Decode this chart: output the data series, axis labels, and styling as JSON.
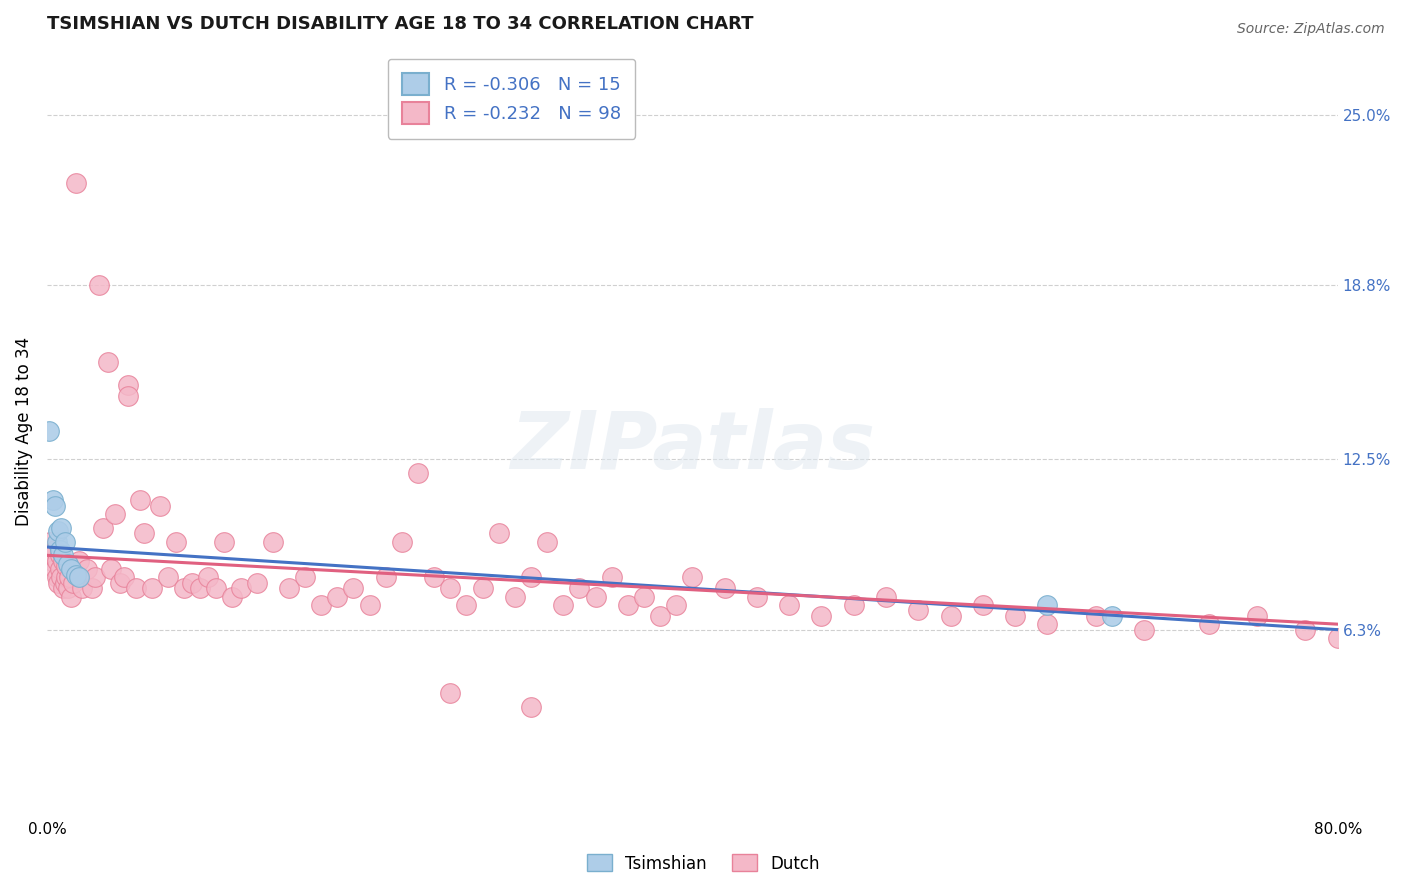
{
  "title": "TSIMSHIAN VS DUTCH DISABILITY AGE 18 TO 34 CORRELATION CHART",
  "source_text": "Source: ZipAtlas.com",
  "ylabel": "Disability Age 18 to 34",
  "xlim": [
    0.0,
    0.8
  ],
  "ylim": [
    -0.005,
    0.275
  ],
  "xticks": [
    0.0,
    0.8
  ],
  "xticklabels": [
    "0.0%",
    "80.0%"
  ],
  "right_yticks": [
    0.063,
    0.125,
    0.188,
    0.25
  ],
  "right_yticklabels": [
    "6.3%",
    "12.5%",
    "18.8%",
    "25.0%"
  ],
  "tsimshian_color": "#aecde8",
  "dutch_color": "#f4b8c8",
  "tsimshian_edge_color": "#7aafce",
  "dutch_edge_color": "#e8829a",
  "tsimshian_line_color": "#4472c4",
  "dutch_line_color": "#e06080",
  "legend_tsimshian_R": "-0.306",
  "legend_tsimshian_N": "15",
  "legend_dutch_R": "-0.232",
  "legend_dutch_N": "98",
  "background_color": "#ffffff",
  "grid_color": "#d0d0d0",
  "watermark_text": "ZIPatlas",
  "tsimshian_x": [
    0.001,
    0.004,
    0.005,
    0.006,
    0.007,
    0.008,
    0.009,
    0.01,
    0.011,
    0.013,
    0.015,
    0.018,
    0.02,
    0.62,
    0.66
  ],
  "tsimshian_y": [
    0.135,
    0.11,
    0.108,
    0.095,
    0.099,
    0.092,
    0.1,
    0.09,
    0.095,
    0.087,
    0.085,
    0.083,
    0.082,
    0.072,
    0.068
  ],
  "dutch_x": [
    0.002,
    0.003,
    0.004,
    0.005,
    0.005,
    0.006,
    0.006,
    0.007,
    0.008,
    0.008,
    0.009,
    0.01,
    0.01,
    0.011,
    0.012,
    0.012,
    0.013,
    0.014,
    0.015,
    0.016,
    0.018,
    0.02,
    0.02,
    0.022,
    0.025,
    0.028,
    0.03,
    0.032,
    0.035,
    0.038,
    0.04,
    0.042,
    0.045,
    0.048,
    0.05,
    0.05,
    0.055,
    0.058,
    0.06,
    0.065,
    0.07,
    0.075,
    0.08,
    0.085,
    0.09,
    0.095,
    0.1,
    0.105,
    0.11,
    0.115,
    0.12,
    0.13,
    0.14,
    0.15,
    0.16,
    0.17,
    0.18,
    0.19,
    0.2,
    0.21,
    0.22,
    0.23,
    0.24,
    0.25,
    0.26,
    0.27,
    0.28,
    0.29,
    0.3,
    0.31,
    0.32,
    0.33,
    0.34,
    0.35,
    0.36,
    0.37,
    0.38,
    0.39,
    0.4,
    0.42,
    0.44,
    0.46,
    0.48,
    0.5,
    0.52,
    0.54,
    0.56,
    0.58,
    0.6,
    0.62,
    0.65,
    0.68,
    0.72,
    0.75,
    0.78,
    0.8,
    0.25,
    0.3
  ],
  "dutch_y": [
    0.095,
    0.088,
    0.09,
    0.085,
    0.092,
    0.082,
    0.088,
    0.08,
    0.085,
    0.09,
    0.082,
    0.078,
    0.088,
    0.08,
    0.082,
    0.086,
    0.078,
    0.082,
    0.075,
    0.08,
    0.225,
    0.082,
    0.088,
    0.078,
    0.085,
    0.078,
    0.082,
    0.188,
    0.1,
    0.16,
    0.085,
    0.105,
    0.08,
    0.082,
    0.152,
    0.148,
    0.078,
    0.11,
    0.098,
    0.078,
    0.108,
    0.082,
    0.095,
    0.078,
    0.08,
    0.078,
    0.082,
    0.078,
    0.095,
    0.075,
    0.078,
    0.08,
    0.095,
    0.078,
    0.082,
    0.072,
    0.075,
    0.078,
    0.072,
    0.082,
    0.095,
    0.12,
    0.082,
    0.078,
    0.072,
    0.078,
    0.098,
    0.075,
    0.082,
    0.095,
    0.072,
    0.078,
    0.075,
    0.082,
    0.072,
    0.075,
    0.068,
    0.072,
    0.082,
    0.078,
    0.075,
    0.072,
    0.068,
    0.072,
    0.075,
    0.07,
    0.068,
    0.072,
    0.068,
    0.065,
    0.068,
    0.063,
    0.065,
    0.068,
    0.063,
    0.06,
    0.04,
    0.035
  ],
  "title_fontsize": 13,
  "axis_label_fontsize": 12,
  "tick_fontsize": 11,
  "legend_fontsize": 13
}
